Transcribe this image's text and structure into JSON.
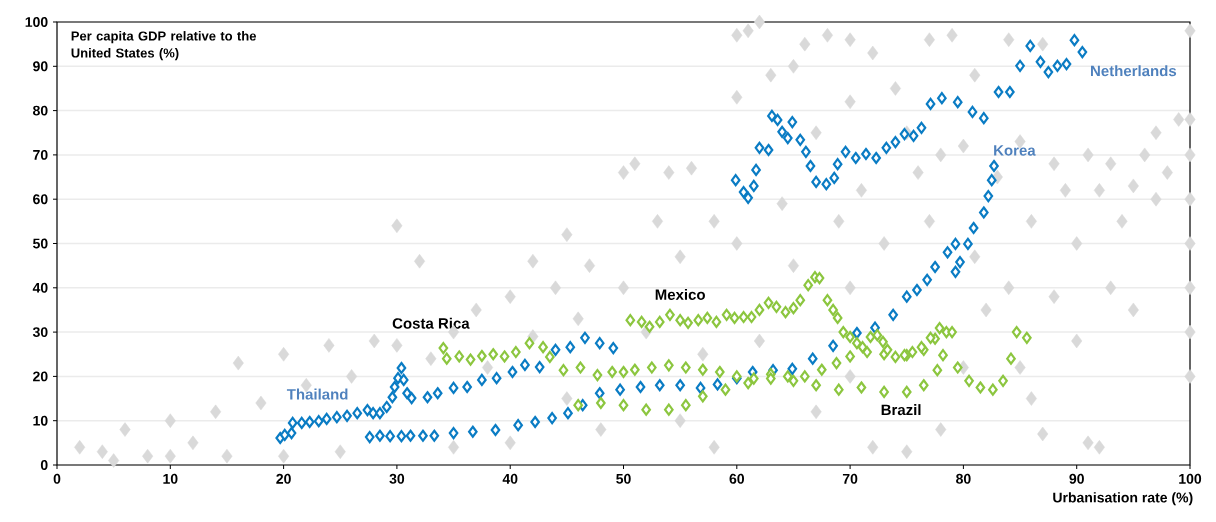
{
  "chart_data": {
    "type": "scatter",
    "ylabel": "Per capita GDP relative to the United States (%)",
    "xlabel": "Urbanisation rate (%)",
    "xlim": [
      0,
      100
    ],
    "ylim": [
      0,
      100
    ],
    "xticks": [
      0,
      10,
      20,
      30,
      40,
      50,
      60,
      70,
      80,
      90,
      100
    ],
    "yticks": [
      0,
      10,
      20,
      30,
      40,
      50,
      60,
      70,
      80,
      90,
      100
    ],
    "grid": "y",
    "marker": "diamond",
    "series": [
      {
        "color": "#d9d9d9",
        "x": [
          2,
          4,
          6,
          8,
          10,
          12,
          14,
          15,
          16,
          18,
          20,
          22,
          24,
          25,
          26,
          28,
          30,
          30,
          32,
          33,
          35,
          35,
          37,
          38,
          40,
          40,
          42,
          42,
          44,
          45,
          46,
          47,
          48,
          50,
          50,
          51,
          52,
          53,
          54,
          55,
          56,
          57,
          58,
          58,
          60,
          60,
          60,
          61,
          62,
          63,
          64,
          65,
          65,
          66,
          67,
          67,
          68,
          69,
          70,
          70,
          70,
          71,
          72,
          72,
          73,
          74,
          75,
          75,
          76,
          77,
          77,
          78,
          78,
          79,
          80,
          81,
          81,
          82,
          83,
          84,
          84,
          85,
          85,
          86,
          86,
          87,
          87,
          88,
          88,
          89,
          90,
          90,
          91,
          91,
          92,
          93,
          93,
          94,
          95,
          95,
          96,
          97,
          97,
          98,
          99,
          100,
          100,
          100,
          100,
          100,
          100,
          100,
          100,
          92,
          45,
          55,
          62,
          70,
          80,
          20,
          10,
          5
        ],
        "values": [
          4,
          3,
          8,
          2,
          10,
          5,
          12,
          2,
          23,
          14,
          25,
          18,
          27,
          3,
          20,
          28,
          27,
          54,
          46,
          24,
          30,
          4,
          35,
          22,
          38,
          5,
          29,
          46,
          40,
          52,
          33,
          45,
          8,
          66,
          40,
          68,
          30,
          55,
          66,
          47,
          67,
          25,
          55,
          4,
          97,
          83,
          50,
          98,
          100,
          88,
          59,
          90,
          45,
          95,
          75,
          12,
          97,
          55,
          96,
          82,
          40,
          62,
          93,
          4,
          50,
          85,
          75,
          3,
          66,
          96,
          55,
          70,
          8,
          97,
          72,
          88,
          47,
          35,
          65,
          96,
          40,
          73,
          22,
          55,
          15,
          95,
          7,
          68,
          38,
          62,
          50,
          28,
          70,
          5,
          62,
          40,
          68,
          55,
          63,
          35,
          70,
          60,
          75,
          66,
          78,
          98,
          78,
          70,
          60,
          50,
          40,
          30,
          20,
          4,
          15,
          10,
          28,
          20,
          22,
          2,
          2,
          1
        ]
      },
      {
        "name": "Thailand",
        "color": "#0a7cc4",
        "x": [
          19.7,
          20.1,
          20.7,
          20.8,
          21.6,
          22.3,
          23.1,
          23.8,
          24.7,
          25.6,
          26.5,
          27.4,
          27.9,
          28.5,
          29.1,
          29.6,
          29.8,
          30.1,
          30.4,
          30.6,
          30.9,
          31.3,
          32.7,
          33.6,
          35,
          36.2,
          37.5,
          38.8,
          40.2,
          41.3,
          42.6,
          44,
          45.3,
          46.6,
          47.9,
          49.1
        ],
        "values": [
          6.1,
          6.8,
          7.2,
          9.5,
          9.5,
          9.7,
          9.9,
          10.4,
          10.8,
          11.1,
          11.7,
          12.4,
          11.7,
          11.7,
          13.1,
          15.3,
          17.6,
          19.6,
          21.9,
          19.2,
          16.2,
          15.1,
          15.3,
          16.2,
          17.4,
          17.6,
          19.2,
          19.6,
          21,
          22.6,
          22.1,
          26,
          26.6,
          28.7,
          27.5,
          26.4
        ]
      },
      {
        "name": "Korea",
        "color": "#0a7cc4",
        "x": [
          27.6,
          28.5,
          29.4,
          30.4,
          31.2,
          32.3,
          33.3,
          35,
          36.7,
          38.7,
          40.7,
          42.2,
          43.7,
          45.1,
          46.4,
          47.9,
          49.7,
          51.5,
          53.2,
          55,
          56.8,
          58.3,
          60,
          61.4,
          63.2,
          64.9,
          66.7,
          68.5,
          70.6,
          72.2,
          73.8,
          75,
          75.9,
          76.8,
          77.5,
          79.3,
          79.7,
          78.6,
          79.3,
          80.4,
          80.9,
          81.8,
          82.2,
          82.5,
          82.7
        ],
        "values": [
          6.3,
          6.6,
          6.5,
          6.5,
          6.6,
          6.6,
          6.6,
          7.2,
          7.5,
          7.9,
          9,
          9.7,
          10.6,
          11.7,
          13.5,
          16.2,
          17,
          17.6,
          18,
          18,
          17.4,
          18.2,
          19.6,
          21,
          21.4,
          21.7,
          24,
          26.9,
          29.8,
          31,
          33.9,
          38,
          39.5,
          41.8,
          44.7,
          43.6,
          45.8,
          48,
          49.9,
          49.9,
          53.5,
          57,
          60.7,
          64.3,
          67.5
        ]
      },
      {
        "name": "Netherlands",
        "color": "#0a7cc4",
        "x": [
          59.9,
          60.6,
          61,
          61.5,
          61.7,
          62,
          62.8,
          63.1,
          63.6,
          64,
          64.5,
          64.9,
          65.6,
          66.1,
          66.5,
          67,
          67.9,
          68.6,
          68.9,
          69.6,
          70.5,
          71.4,
          72.3,
          73.2,
          74,
          74.8,
          75.6,
          76.3,
          77.1,
          78.1,
          79.5,
          80.8,
          81.8,
          83.1,
          84.1,
          85,
          85.9,
          86.8,
          87.5,
          88.3,
          89.1,
          89.8,
          90.5
        ],
        "values": [
          64.3,
          61.6,
          60.3,
          63,
          66.6,
          71.6,
          71.1,
          78.8,
          77.9,
          75.2,
          73.8,
          77.4,
          73.4,
          70.7,
          67.5,
          63.9,
          63.4,
          64.8,
          67.9,
          70.7,
          69.3,
          70.2,
          69.3,
          71.6,
          72.9,
          74.7,
          74.3,
          76.1,
          81.5,
          82.8,
          81.9,
          79.7,
          78.3,
          84.2,
          84.2,
          90.1,
          94.6,
          91,
          88.7,
          90.1,
          90.5,
          95.9,
          93.2
        ]
      },
      {
        "name": "Costa Rica",
        "color": "#8cc63f",
        "x": [
          34.1,
          34.4,
          35.5,
          36.5,
          37.5,
          38.5,
          39.5,
          40.5,
          41.7,
          42.9,
          43.5,
          44.7,
          46.2,
          47.7,
          49,
          50,
          51,
          52.5,
          54,
          55.5,
          57,
          58.5,
          60,
          61.5,
          63,
          64.5,
          66,
          67.5,
          68.8,
          70,
          71.5,
          73,
          75,
          76.5,
          77.5,
          78.5
        ],
        "values": [
          26.4,
          24,
          24.5,
          23.8,
          24.6,
          25,
          24.5,
          25.5,
          27.5,
          26.6,
          24.4,
          21.4,
          22,
          20.3,
          21,
          21,
          21.5,
          22,
          22.5,
          22,
          21.5,
          21,
          20,
          19.5,
          20.5,
          20,
          20,
          21.5,
          23,
          24.5,
          25.5,
          25,
          24.8,
          26,
          28.5,
          30
        ]
      },
      {
        "name": "Mexico",
        "color": "#8cc63f",
        "x": [
          50.6,
          51.6,
          52.3,
          53.2,
          54.1,
          55,
          55.7,
          56.6,
          57.4,
          58.2,
          59.1,
          59.8,
          60.6,
          61.3,
          62,
          62.8,
          63.5,
          64.3,
          65,
          65.6,
          66.3,
          66.9,
          67.3,
          68,
          68.5,
          68.9,
          69.4,
          70,
          70.6,
          71.1,
          71.8,
          72.4,
          72.9,
          73.3,
          74,
          74.8,
          75.5,
          76.3,
          77.1,
          77.9,
          79
        ],
        "values": [
          32.7,
          32.3,
          31.2,
          32.3,
          33.9,
          32.7,
          32.1,
          32.7,
          33.2,
          32.3,
          33.9,
          33.2,
          33.4,
          33.4,
          35,
          36.6,
          35.7,
          34.5,
          35.4,
          37.2,
          40.6,
          42.4,
          42.2,
          37.2,
          35,
          33.2,
          30,
          28.9,
          27.5,
          26.6,
          28.9,
          29.3,
          27.8,
          26,
          24.4,
          24.8,
          25.5,
          26.6,
          28.7,
          30.9,
          30
        ]
      },
      {
        "name": "Brazil",
        "color": "#8cc63f",
        "x": [
          46,
          48,
          50,
          52,
          54,
          55.5,
          57,
          59,
          61,
          63,
          65,
          67,
          69,
          71,
          73,
          75,
          76.5,
          77.7,
          78.2,
          79.5,
          80.5,
          81.5,
          82.6,
          83.5,
          84.2,
          84.7,
          85.6
        ],
        "values": [
          13.5,
          14,
          13.5,
          12.5,
          12.5,
          13.5,
          15.5,
          17,
          18.5,
          19.5,
          19,
          18,
          17,
          17.5,
          16.5,
          16.5,
          18,
          21.4,
          24.8,
          22,
          19,
          17.5,
          17,
          19,
          24,
          30,
          28.7
        ]
      }
    ]
  }
}
